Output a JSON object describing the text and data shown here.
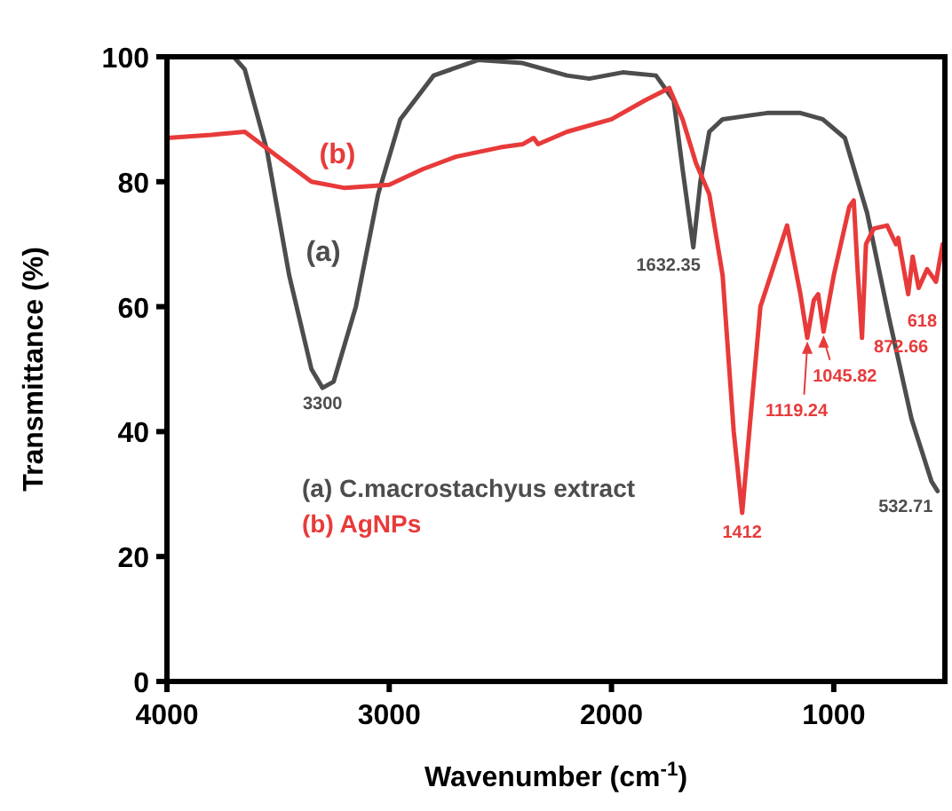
{
  "chart_data": {
    "type": "line",
    "xlabel": "Wavenumber (cm$^{-1}$)",
    "ylabel": "Transmittance (%)",
    "xlim": [
      4000,
      500
    ],
    "xticks": [
      4000,
      3000,
      2000,
      1000
    ],
    "ylim": [
      0,
      100
    ],
    "yticks": [
      0,
      20,
      40,
      60,
      80,
      100
    ],
    "grid": false,
    "legend": "bottom left",
    "line_style": "solid",
    "series": [
      {
        "name": "(a) C.macrostachyus extract",
        "color": "#4d4d4d",
        "x": [
          4000,
          3700,
          3650,
          3550,
          3450,
          3350,
          3300,
          3250,
          3150,
          3050,
          2950,
          2800,
          2600,
          2400,
          2200,
          2100,
          1950,
          1800,
          1720,
          1680,
          1632,
          1600,
          1560,
          1500,
          1400,
          1300,
          1150,
          1050,
          950,
          850,
          750,
          650,
          560,
          533
        ],
        "values": [
          100,
          100,
          98,
          85,
          65,
          50,
          47,
          48,
          60,
          78,
          90,
          97,
          99.5,
          99,
          97,
          96.5,
          97.5,
          97,
          93,
          82,
          69.5,
          80,
          88,
          90,
          90.5,
          91,
          91,
          90,
          87,
          75,
          58,
          42,
          32,
          30.5
        ]
      },
      {
        "name": "(b) AgNPs",
        "color": "#e83a3a",
        "x": [
          4000,
          3800,
          3650,
          3500,
          3350,
          3200,
          3000,
          2850,
          2700,
          2500,
          2400,
          2350,
          2330,
          2200,
          2000,
          1850,
          1740,
          1680,
          1620,
          1560,
          1500,
          1450,
          1412,
          1380,
          1330,
          1210,
          1150,
          1119,
          1090,
          1070,
          1046,
          1000,
          930,
          910,
          893,
          873,
          855,
          820,
          760,
          720,
          710,
          665,
          645,
          618,
          580,
          540,
          510
        ],
        "values": [
          87,
          87.5,
          88,
          84,
          80,
          79,
          79.5,
          82,
          84,
          85.5,
          86,
          87,
          86,
          88,
          90,
          93,
          95,
          90,
          83,
          78,
          65,
          40,
          27,
          40,
          60,
          73,
          62,
          55,
          61,
          62,
          56,
          65,
          76,
          77,
          66,
          55,
          70,
          72.5,
          73,
          70,
          71,
          62,
          68,
          63,
          66,
          64,
          70
        ]
      }
    ],
    "annotations": [
      {
        "text": "3300",
        "x": 3300,
        "y": 47
      },
      {
        "text": "1632.35",
        "x": 1632,
        "y": 69.5
      },
      {
        "text": "532.71",
        "x": 533,
        "y": 30.5
      },
      {
        "text": "1412",
        "x": 1412,
        "y": 27
      },
      {
        "text": "1119.24",
        "x": 1119,
        "y": 55
      },
      {
        "text": "1045.82",
        "x": 1046,
        "y": 56
      },
      {
        "text": "872.66",
        "x": 873,
        "y": 55
      },
      {
        "text": "618",
        "x": 618,
        "y": 63
      },
      "(a)",
      "(b)"
    ]
  }
}
